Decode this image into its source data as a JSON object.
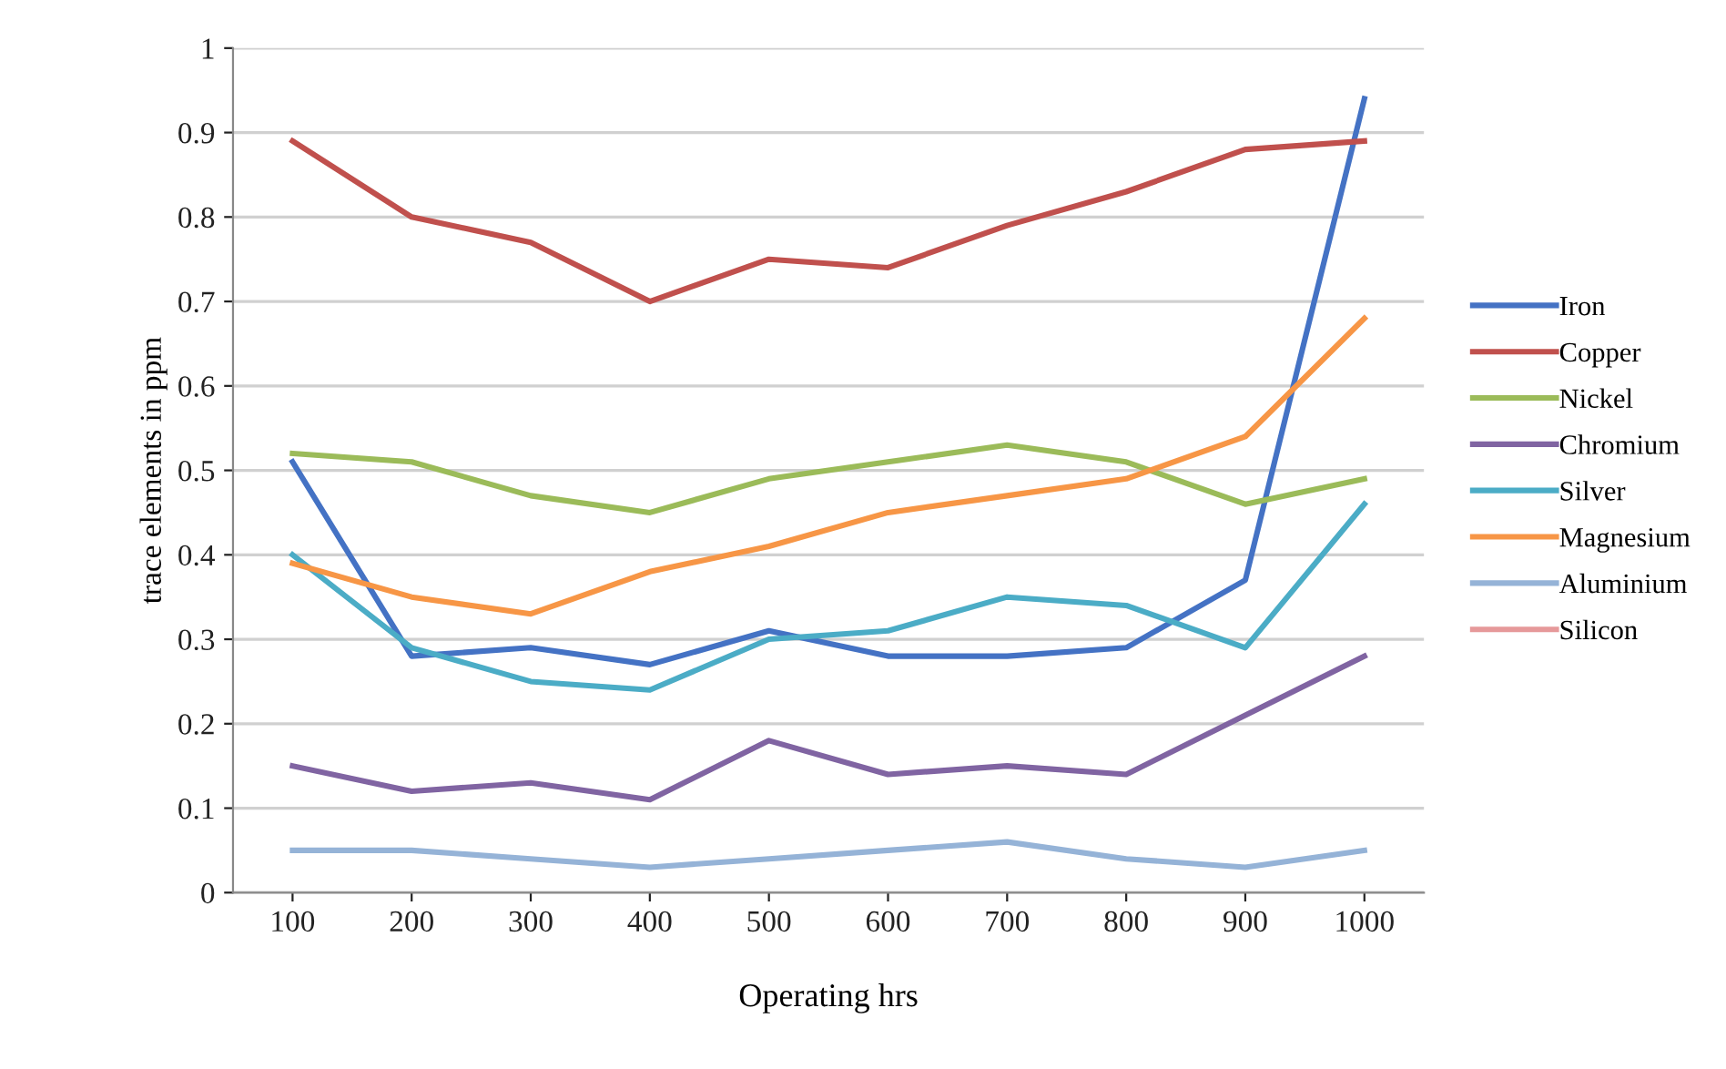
{
  "chart_data": {
    "type": "line",
    "xlabel": "Operating hrs",
    "ylabel": "trace elements in ppm",
    "categories": [
      "100",
      "200",
      "300",
      "400",
      "500",
      "600",
      "700",
      "800",
      "900",
      "1000"
    ],
    "ylim": [
      0,
      1
    ],
    "yticks": [
      0,
      0.1,
      0.2,
      0.3,
      0.4,
      0.5,
      0.6,
      0.7,
      0.8,
      0.9,
      1
    ],
    "grid": "y",
    "legend": "right",
    "marker": "none",
    "line_style": "solid",
    "series": [
      {
        "name": "Iron",
        "color": "#4472c4",
        "values": [
          0.51,
          0.28,
          0.29,
          0.27,
          0.31,
          0.28,
          0.28,
          0.29,
          0.37,
          0.94
        ]
      },
      {
        "name": "Copper",
        "color": "#c0504d",
        "values": [
          0.89,
          0.8,
          0.77,
          0.7,
          0.75,
          0.74,
          0.79,
          0.83,
          0.88,
          0.89
        ]
      },
      {
        "name": "Nickel",
        "color": "#9bbb59",
        "values": [
          0.52,
          0.51,
          0.47,
          0.45,
          0.49,
          0.51,
          0.53,
          0.51,
          0.46,
          0.49
        ]
      },
      {
        "name": "Chromium",
        "color": "#8064a2",
        "values": [
          0.15,
          0.12,
          0.13,
          0.11,
          0.18,
          0.14,
          0.15,
          0.14,
          0.21,
          0.28
        ]
      },
      {
        "name": "Silver",
        "color": "#4bacc6",
        "values": [
          0.4,
          0.29,
          0.25,
          0.24,
          0.3,
          0.31,
          0.35,
          0.34,
          0.29,
          0.46
        ]
      },
      {
        "name": "Magnesium",
        "color": "#f79646",
        "values": [
          0.39,
          0.35,
          0.33,
          0.38,
          0.41,
          0.45,
          0.47,
          0.49,
          0.54,
          0.68
        ]
      },
      {
        "name": "Aluminium",
        "color": "#95b3d7",
        "values": [
          0.05,
          0.05,
          0.04,
          0.03,
          0.04,
          0.05,
          0.06,
          0.04,
          0.03,
          0.05
        ]
      },
      {
        "name": "Silicon",
        "color": "#e6999a",
        "values": [
          null,
          null,
          null,
          null,
          null,
          null,
          null,
          null,
          null,
          null
        ]
      }
    ]
  }
}
